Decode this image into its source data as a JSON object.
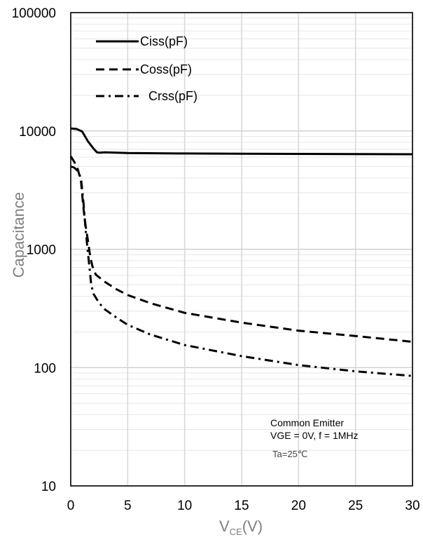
{
  "chart_data": {
    "type": "line",
    "xlabel_main": "V",
    "xlabel_sub": "CE",
    "xlabel_unit": "(V)",
    "ylabel": "Capacitance",
    "xlim": [
      0,
      30
    ],
    "ylim": [
      10,
      100000
    ],
    "yscale": "log",
    "grid": true,
    "legend_position": "top-left",
    "x_ticks": [
      "0",
      "5",
      "10",
      "15",
      "20",
      "25",
      "30"
    ],
    "y_ticks": [
      "10",
      "100",
      "1000",
      "10000",
      "100000"
    ],
    "series": [
      {
        "name": "Ciss(pF)",
        "style": "solid",
        "x": [
          0,
          0.5,
          1.0,
          1.5,
          2.0,
          2.3,
          2.5,
          3.0,
          5,
          10,
          15,
          20,
          25,
          30
        ],
        "y": [
          10500,
          10400,
          9900,
          8200,
          7100,
          6600,
          6550,
          6600,
          6500,
          6450,
          6420,
          6400,
          6380,
          6350
        ]
      },
      {
        "name": "Coss(pF)",
        "style": "dashed",
        "x": [
          0,
          0.3,
          0.6,
          0.9,
          1.1,
          1.3,
          1.5,
          1.7,
          1.9,
          2.2,
          3,
          4,
          5,
          7,
          10,
          15,
          20,
          25,
          30
        ],
        "y": [
          6100,
          5500,
          4800,
          3800,
          2300,
          1600,
          1200,
          880,
          720,
          610,
          530,
          460,
          410,
          350,
          290,
          240,
          205,
          185,
          165
        ]
      },
      {
        "name": "Crss(pF)",
        "style": "dashdot",
        "x": [
          0,
          0.3,
          0.6,
          0.9,
          1.1,
          1.3,
          1.5,
          1.7,
          1.8,
          2.0,
          2.5,
          3,
          4,
          5,
          7,
          10,
          15,
          20,
          25,
          30
        ],
        "y": [
          5000,
          4900,
          4600,
          4000,
          2600,
          1500,
          950,
          620,
          500,
          420,
          350,
          310,
          265,
          230,
          190,
          155,
          125,
          105,
          93,
          85
        ]
      }
    ],
    "annotations": [
      "Common Emitter",
      "VGE = 0V, f = 1MHz",
      "Ta=25℃"
    ]
  }
}
